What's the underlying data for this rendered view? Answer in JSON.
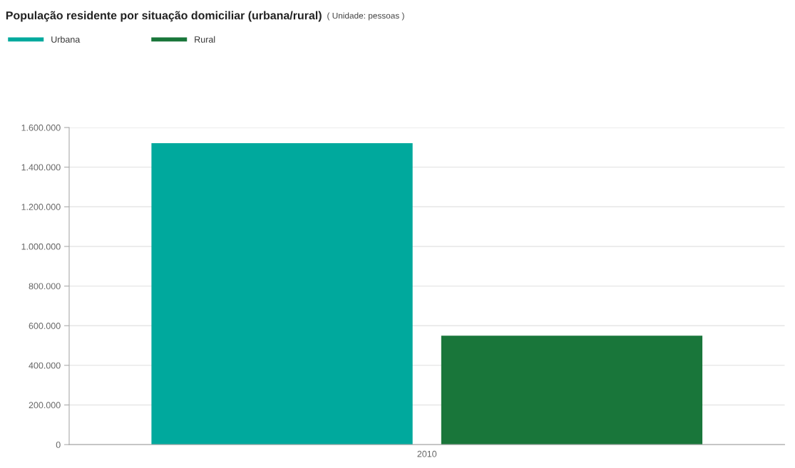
{
  "chart_data": {
    "type": "bar",
    "title": "População residente por situação domiciliar (urbana/rural)",
    "subtitle": "( Unidade: pessoas )",
    "categories": [
      "2010"
    ],
    "series": [
      {
        "name": "Urbana",
        "color": "#00a99d",
        "values": [
          1521000
        ]
      },
      {
        "name": "Rural",
        "color": "#19763a",
        "values": [
          550000
        ]
      }
    ],
    "ylim": [
      0,
      1600000
    ],
    "yticks": [
      0,
      {
        "value": 200000,
        "label": "200.000"
      },
      {
        "value": 400000,
        "label": "400.000"
      },
      {
        "value": 600000,
        "label": "600.000"
      },
      {
        "value": 800000,
        "label": "800.000"
      },
      {
        "value": 1000000,
        "label": "1.000.000"
      },
      {
        "value": 1200000,
        "label": "1.200.000"
      },
      {
        "value": 1400000,
        "label": "1.400.000"
      },
      {
        "value": 1600000,
        "label": "1.600.000"
      }
    ],
    "grid": "y",
    "legend": "top left"
  }
}
